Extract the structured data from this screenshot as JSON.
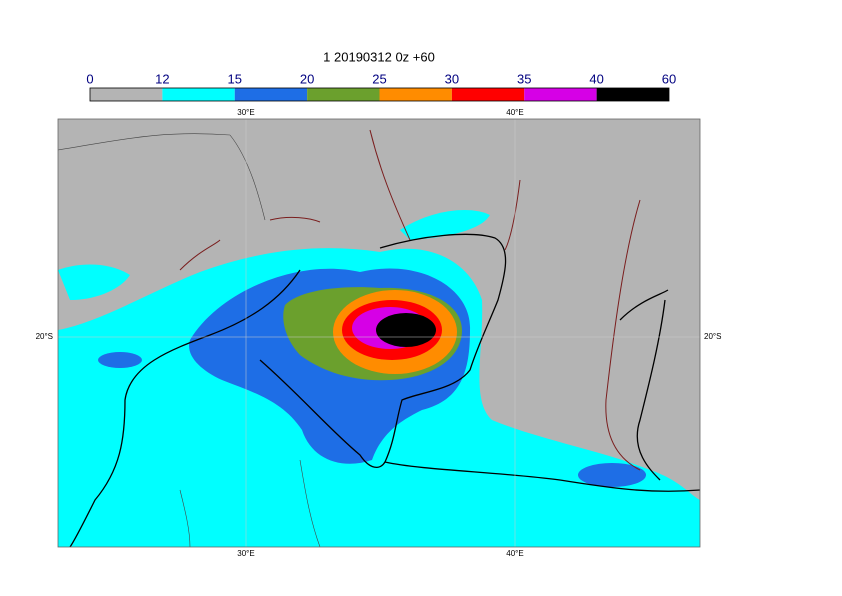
{
  "map": {
    "title": "1 20190312 0z +60",
    "colorbar": {
      "levels": [
        0,
        12,
        15,
        20,
        25,
        30,
        35,
        40,
        60
      ],
      "colors": [
        "#b4b4b4",
        "#00ffff",
        "#1e6ee6",
        "#6ba02d",
        "#ff8c00",
        "#ff0000",
        "#d600e6",
        "#000000"
      ]
    },
    "lon_labels": [
      {
        "value": 30,
        "label": "30°E"
      },
      {
        "value": 40,
        "label": "40°E"
      }
    ],
    "lat_labels": [
      {
        "value": -20,
        "label": "20°S"
      }
    ]
  }
}
